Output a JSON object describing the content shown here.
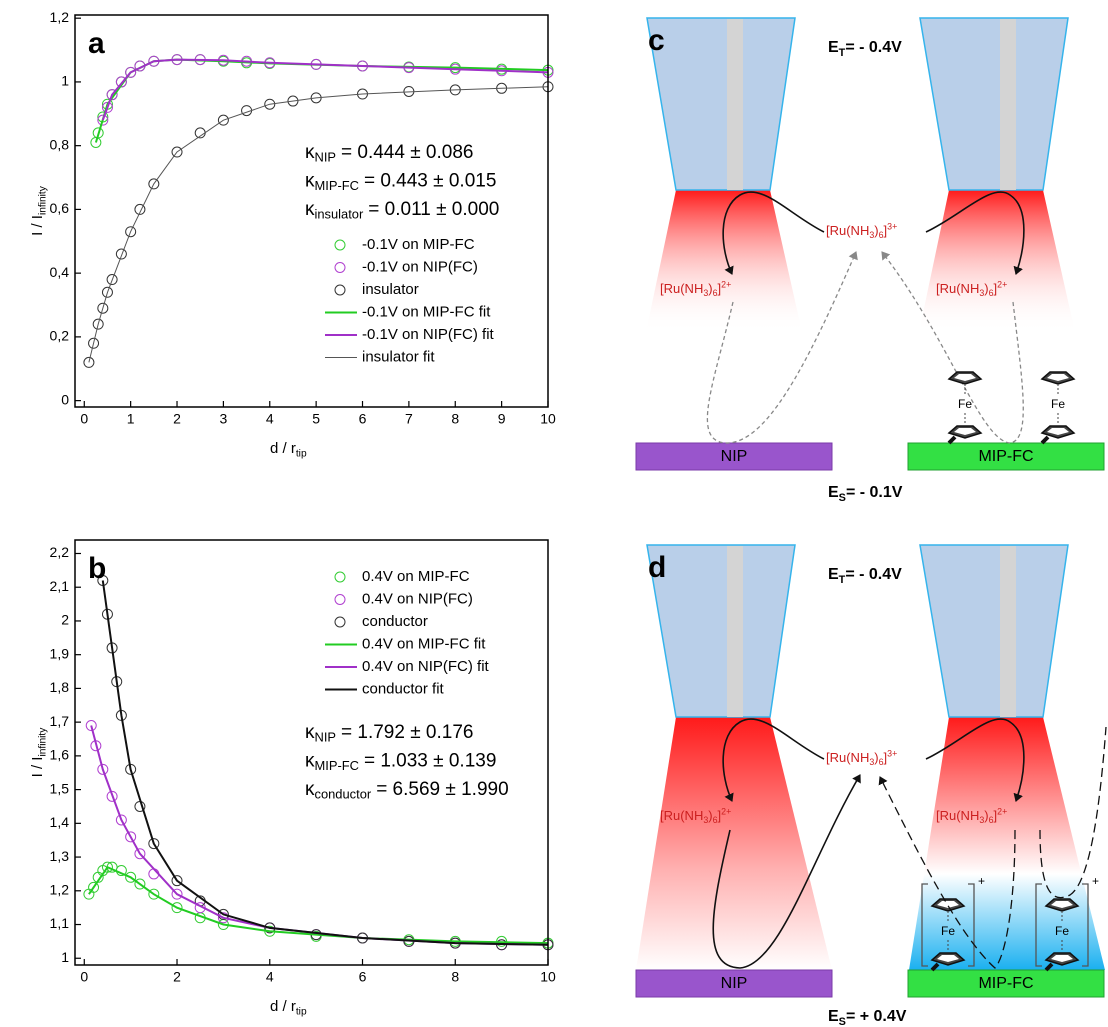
{
  "chart_data": [
    {
      "type": "scatter",
      "panel": "a",
      "xlabel": {
        "main": "d / r",
        "sub": "tip"
      },
      "ylabel": {
        "main": "I / I",
        "sub": "infinity"
      },
      "xlim": [
        -0.2,
        10
      ],
      "ylim": [
        -0.02,
        1.21
      ],
      "xticks": [
        0,
        1,
        2,
        3,
        4,
        5,
        6,
        7,
        8,
        9,
        10
      ],
      "yticks": [
        0,
        {
          "value": 0.2,
          "label": "0,2"
        },
        {
          "value": 0.4,
          "label": "0,4"
        },
        {
          "value": 0.6,
          "label": "0,6"
        },
        {
          "value": 0.8,
          "label": "0,8"
        },
        1,
        {
          "value": 1.2,
          "label": "1,2"
        }
      ],
      "legend": "center right",
      "annotations": [
        {
          "symbol": "κ",
          "sub": "NIP",
          "rest": "= 0.444 ± 0.086"
        },
        {
          "symbol": "κ",
          "sub": "MIP-FC",
          "rest": "= 0.443 ± 0.015"
        },
        {
          "symbol": "κ",
          "sub": "insulator",
          "rest": "= 0.011 ± 0.000"
        }
      ],
      "series": [
        {
          "name": "-0.1V on MIP-FC",
          "style": "marker",
          "color": "#33cc33",
          "x": [
            0.25,
            0.3,
            0.4,
            0.5,
            0.6,
            0.8,
            1,
            1.2,
            1.5,
            2,
            2.5,
            3,
            3.5,
            4,
            5,
            6,
            7,
            8,
            9,
            10
          ],
          "values": [
            0.81,
            0.84,
            0.89,
            0.93,
            0.96,
            1.0,
            1.03,
            1.05,
            1.065,
            1.07,
            1.07,
            1.065,
            1.06,
            1.058,
            1.055,
            1.05,
            1.047,
            1.045,
            1.04,
            1.037
          ]
        },
        {
          "name": "-0.1V on NIP(FC)",
          "style": "marker",
          "color": "#b040d0",
          "x": [
            0.4,
            0.5,
            0.6,
            0.8,
            1,
            1.2,
            1.5,
            2,
            2.5,
            3,
            3.5,
            4,
            5,
            6,
            7,
            8,
            9,
            10
          ],
          "values": [
            0.88,
            0.92,
            0.96,
            1.0,
            1.03,
            1.05,
            1.065,
            1.07,
            1.07,
            1.068,
            1.065,
            1.06,
            1.055,
            1.05,
            1.045,
            1.04,
            1.035,
            1.03
          ]
        },
        {
          "name": "insulator",
          "style": "marker",
          "color": "#333333",
          "x": [
            0.1,
            0.2,
            0.3,
            0.4,
            0.5,
            0.6,
            0.8,
            1,
            1.2,
            1.5,
            2,
            2.5,
            3,
            3.5,
            4,
            4.5,
            5,
            6,
            7,
            8,
            9,
            10
          ],
          "values": [
            0.12,
            0.18,
            0.24,
            0.29,
            0.34,
            0.38,
            0.46,
            0.53,
            0.6,
            0.68,
            0.78,
            0.84,
            0.88,
            0.91,
            0.93,
            0.94,
            0.95,
            0.962,
            0.97,
            0.975,
            0.98,
            0.985
          ]
        },
        {
          "name": "-0.1V on MIP-FC fit",
          "style": "line",
          "color": "#22cc22",
          "line_width": 2,
          "x": [
            0.25,
            0.5,
            1,
            1.5,
            2,
            3,
            4,
            6,
            8,
            10
          ],
          "values": [
            0.81,
            0.93,
            1.03,
            1.065,
            1.07,
            1.065,
            1.058,
            1.05,
            1.045,
            1.037
          ]
        },
        {
          "name": "-0.1V on NIP(FC) fit",
          "style": "line",
          "color": "#a030c8",
          "line_width": 2,
          "x": [
            0.4,
            0.6,
            1,
            1.5,
            2,
            3,
            4,
            6,
            8,
            10
          ],
          "values": [
            0.88,
            0.96,
            1.03,
            1.065,
            1.07,
            1.068,
            1.06,
            1.05,
            1.04,
            1.03
          ]
        },
        {
          "name": "insulator fit",
          "style": "line",
          "color": "#555555",
          "line_width": 1,
          "x": [
            0.1,
            0.3,
            0.5,
            1,
            1.5,
            2,
            3,
            4,
            5,
            6,
            8,
            10
          ],
          "values": [
            0.12,
            0.24,
            0.34,
            0.53,
            0.68,
            0.78,
            0.88,
            0.93,
            0.95,
            0.962,
            0.975,
            0.985
          ]
        }
      ]
    },
    {
      "type": "scatter",
      "panel": "b",
      "xlabel": {
        "main": "d / r",
        "sub": "tip"
      },
      "ylabel": {
        "main": "I / I",
        "sub": "infinity"
      },
      "xlim": [
        -0.2,
        10
      ],
      "ylim": [
        0.98,
        2.24
      ],
      "xticks": [
        0,
        2,
        4,
        6,
        8,
        10
      ],
      "yticks": [
        1,
        {
          "value": 1.1,
          "label": "1,1"
        },
        {
          "value": 1.2,
          "label": "1,2"
        },
        {
          "value": 1.3,
          "label": "1,3"
        },
        {
          "value": 1.4,
          "label": "1,4"
        },
        {
          "value": 1.5,
          "label": "1,5"
        },
        {
          "value": 1.6,
          "label": "1,6"
        },
        {
          "value": 1.7,
          "label": "1,7"
        },
        {
          "value": 1.8,
          "label": "1,8"
        },
        {
          "value": 1.9,
          "label": "1,9"
        },
        2,
        {
          "value": 2.1,
          "label": "2,1"
        },
        {
          "value": 2.2,
          "label": "2,2"
        }
      ],
      "legend": "upper right",
      "annotations": [
        {
          "symbol": "κ",
          "sub": "NIP",
          "rest": "= 1.792 ± 0.176"
        },
        {
          "symbol": "κ",
          "sub": "MIP-FC",
          "rest": "= 1.033 ± 0.139"
        },
        {
          "symbol": "κ",
          "sub": "conductor",
          "rest": "= 6.569 ± 1.990"
        }
      ],
      "series": [
        {
          "name": "0.4V on MIP-FC",
          "style": "marker",
          "color": "#33cc33",
          "x": [
            0.1,
            0.2,
            0.3,
            0.4,
            0.5,
            0.6,
            0.8,
            1,
            1.2,
            1.5,
            2,
            2.5,
            3,
            4,
            5,
            6,
            7,
            8,
            9,
            10
          ],
          "values": [
            1.19,
            1.21,
            1.24,
            1.26,
            1.27,
            1.27,
            1.26,
            1.24,
            1.22,
            1.19,
            1.15,
            1.12,
            1.1,
            1.08,
            1.065,
            1.06,
            1.055,
            1.05,
            1.05,
            1.045
          ]
        },
        {
          "name": "0.4V on NIP(FC)",
          "style": "marker",
          "color": "#b040d0",
          "x": [
            0.15,
            0.25,
            0.4,
            0.6,
            0.8,
            1,
            1.2,
            1.5,
            2,
            2.5,
            3,
            4,
            5,
            6,
            7,
            8,
            9,
            10
          ],
          "values": [
            1.69,
            1.63,
            1.56,
            1.48,
            1.41,
            1.36,
            1.31,
            1.25,
            1.19,
            1.15,
            1.12,
            1.09,
            1.07,
            1.06,
            1.05,
            1.045,
            1.04,
            1.04
          ]
        },
        {
          "name": "conductor",
          "style": "marker",
          "color": "#333333",
          "x": [
            0.4,
            0.5,
            0.6,
            0.7,
            0.8,
            1,
            1.2,
            1.5,
            2,
            2.5,
            3,
            4,
            5,
            6,
            7,
            8,
            9,
            10
          ],
          "values": [
            2.12,
            2.02,
            1.92,
            1.82,
            1.72,
            1.56,
            1.45,
            1.34,
            1.23,
            1.17,
            1.13,
            1.09,
            1.07,
            1.06,
            1.05,
            1.045,
            1.04,
            1.04
          ]
        },
        {
          "name": "0.4V on MIP-FC fit",
          "style": "line",
          "color": "#22cc22",
          "line_width": 2,
          "x": [
            0.1,
            0.5,
            1,
            1.5,
            2,
            3,
            4,
            6,
            8,
            10
          ],
          "values": [
            1.19,
            1.27,
            1.24,
            1.19,
            1.15,
            1.1,
            1.08,
            1.06,
            1.05,
            1.045
          ]
        },
        {
          "name": "0.4V on NIP(FC) fit",
          "style": "line",
          "color": "#a030c8",
          "line_width": 2,
          "x": [
            0.15,
            0.4,
            0.8,
            1.2,
            2,
            3,
            4,
            6,
            8,
            10
          ],
          "values": [
            1.69,
            1.56,
            1.41,
            1.31,
            1.19,
            1.12,
            1.09,
            1.06,
            1.045,
            1.04
          ]
        },
        {
          "name": "conductor fit",
          "style": "line",
          "color": "#111111",
          "line_width": 2,
          "x": [
            0.4,
            0.6,
            0.8,
            1,
            1.5,
            2,
            3,
            4,
            6,
            8,
            10
          ],
          "values": [
            2.12,
            1.92,
            1.72,
            1.56,
            1.34,
            1.23,
            1.13,
            1.09,
            1.06,
            1.045,
            1.04
          ]
        }
      ]
    }
  ],
  "diagrams": [
    {
      "label": "c",
      "tip_potential": {
        "main": "E",
        "sub": "T",
        "rest": "= - 0.4V"
      },
      "substrate_potential": {
        "main": "E",
        "sub": "S",
        "rest": "= - 0.1V"
      },
      "electrodes": [
        "NIP",
        "MIP-FC"
      ]
    },
    {
      "label": "d",
      "tip_potential": {
        "main": "E",
        "sub": "T",
        "rest": "= - 0.4V"
      },
      "substrate_potential": {
        "main": "E",
        "sub": "S",
        "rest": "= + 0.4V"
      },
      "electrodes": [
        "NIP",
        "MIP-FC"
      ]
    }
  ],
  "species": {
    "oxidized": [
      "[Ru(NH",
      "3",
      ")",
      "6",
      "]",
      "3+"
    ],
    "reduced": [
      "[Ru(NH",
      "3",
      ")",
      "6",
      "]",
      "2+"
    ],
    "iron": "Fe",
    "ferrocenium_charge": "+"
  }
}
